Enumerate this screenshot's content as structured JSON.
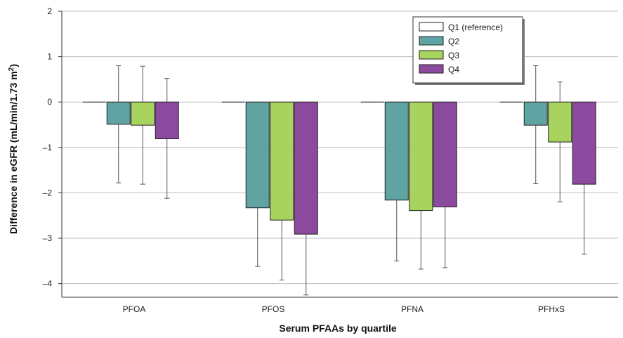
{
  "chart_data": {
    "type": "bar",
    "xlabel": "Serum PFAAs by quartile",
    "ylabel": "Difference in eGFR (mL/min/1.73 m²)",
    "ylim": [
      -4.3,
      2
    ],
    "yticks": [
      2,
      1,
      0,
      -1,
      -2,
      -3,
      -4
    ],
    "ytick_labels": [
      "2",
      "1",
      "0",
      "–1",
      "–2",
      "–3",
      "–4"
    ],
    "categories": [
      "PFOA",
      "PFOS",
      "PFNA",
      "PFHxS"
    ],
    "legend_position": "top-right",
    "grid": true,
    "series": [
      {
        "name": "Q1 (reference)",
        "color": "#ffffff",
        "values": [
          0,
          0,
          0,
          0
        ],
        "ci_low": [
          null,
          null,
          null,
          null
        ],
        "ci_high": [
          null,
          null,
          null,
          null
        ]
      },
      {
        "name": "Q2",
        "color": "#5fa3a3",
        "values": [
          -0.49,
          -2.33,
          -2.16,
          -0.51
        ],
        "ci_low": [
          -1.78,
          -3.62,
          -3.5,
          -1.8
        ],
        "ci_high": [
          0.8,
          null,
          null,
          0.8
        ]
      },
      {
        "name": "Q3",
        "color": "#a8d35f",
        "values": [
          -0.51,
          -2.6,
          -2.39,
          -0.88
        ],
        "ci_low": [
          -1.81,
          -3.92,
          -3.68,
          -2.2
        ],
        "ci_high": [
          0.79,
          null,
          null,
          0.44
        ]
      },
      {
        "name": "Q4",
        "color": "#8c4a9e",
        "values": [
          -0.81,
          -2.91,
          -2.31,
          -1.81
        ],
        "ci_low": [
          -2.12,
          -4.25,
          -3.65,
          -3.35
        ],
        "ci_high": [
          0.52,
          null,
          null,
          null
        ]
      }
    ]
  }
}
